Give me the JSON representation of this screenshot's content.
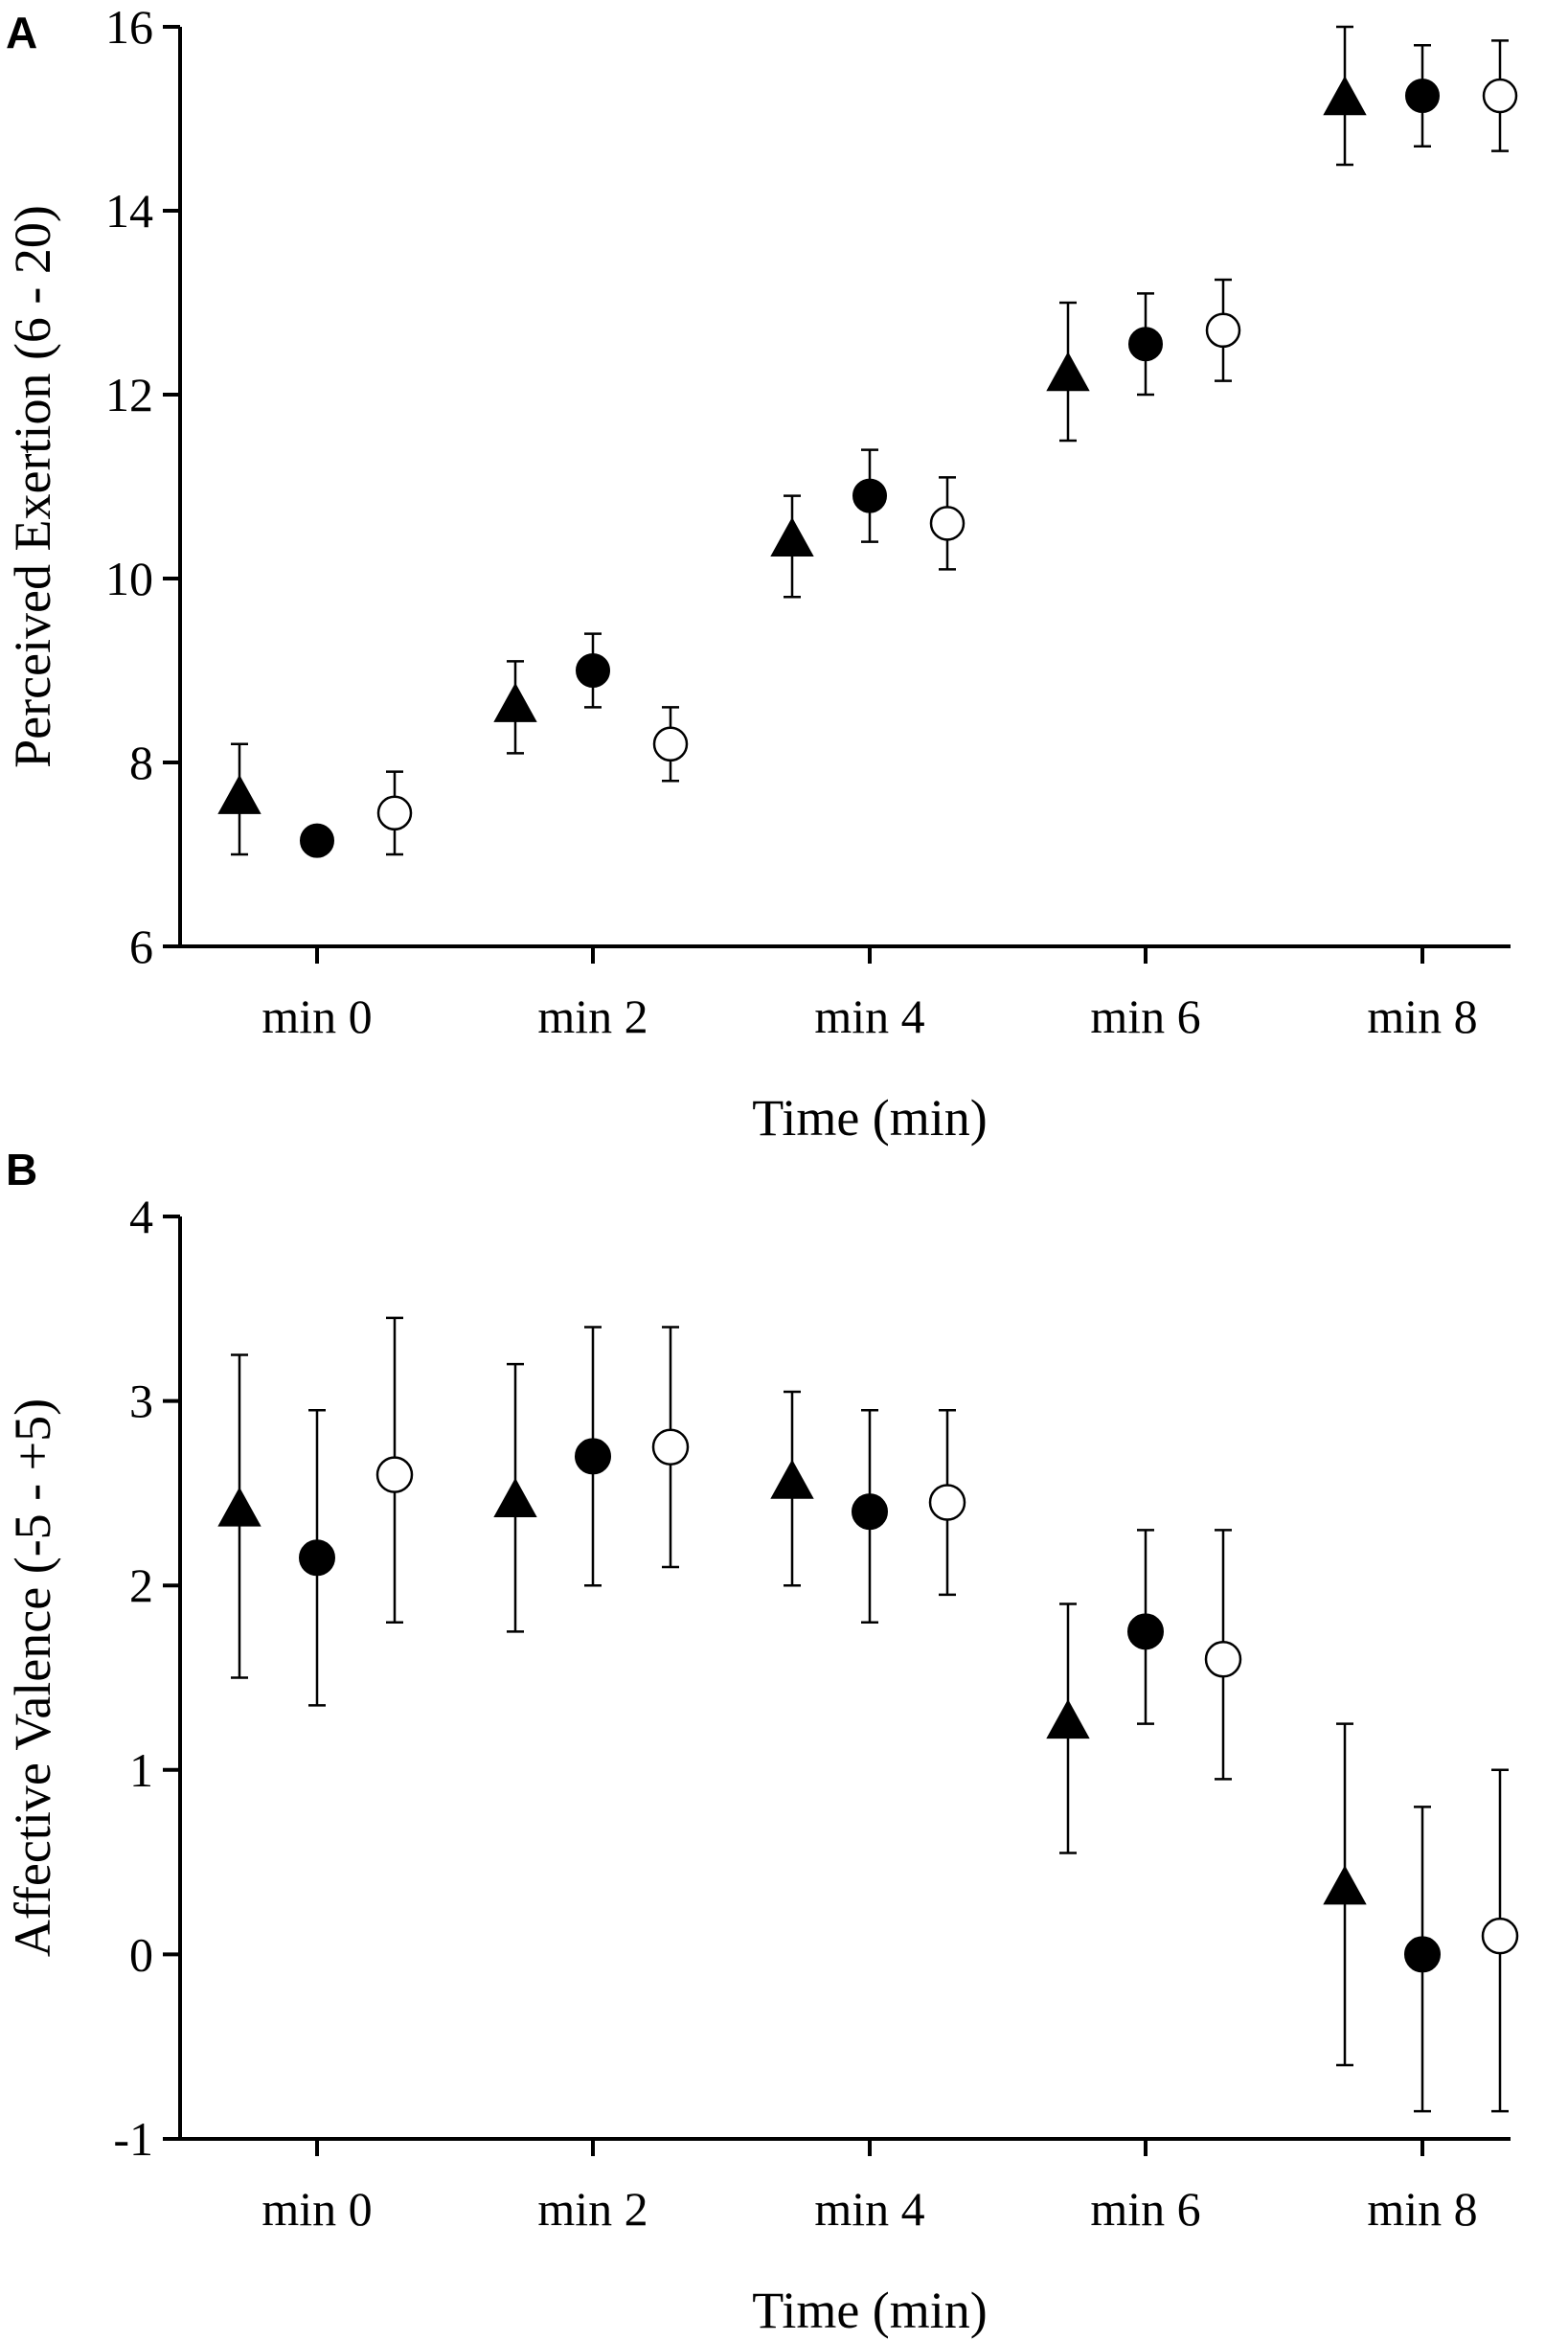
{
  "chart_data": [
    {
      "panel": "A",
      "type": "scatter",
      "xlabel": "Time (min)",
      "ylabel": "Perceived Exertion (6 - 20)",
      "categories": [
        "min 0",
        "min 2",
        "min 4",
        "min 6",
        "min 8"
      ],
      "yticks": [
        "6",
        "8",
        "10",
        "12",
        "14",
        "16"
      ],
      "ylim": [
        6,
        16
      ],
      "series": [
        {
          "name": "triangle-series",
          "marker": "triangle",
          "fill": "#000000",
          "values": [
            7.6,
            8.6,
            10.4,
            12.2,
            15.2
          ],
          "err_low": [
            7.0,
            8.1,
            9.8,
            11.5,
            14.5
          ],
          "err_high": [
            8.2,
            9.1,
            10.9,
            13.0,
            16.0
          ]
        },
        {
          "name": "filled-circle-series",
          "marker": "circle",
          "fill": "#000000",
          "values": [
            7.15,
            9.0,
            10.9,
            12.55,
            15.25
          ],
          "err_low": [
            7.15,
            8.6,
            10.4,
            12.0,
            14.7
          ],
          "err_high": [
            7.15,
            9.4,
            11.4,
            13.1,
            15.8
          ]
        },
        {
          "name": "open-circle-series",
          "marker": "circle",
          "fill": "#ffffff",
          "values": [
            7.45,
            8.2,
            10.6,
            12.7,
            15.25
          ],
          "err_low": [
            7.0,
            7.8,
            10.1,
            12.15,
            14.65
          ],
          "err_high": [
            7.9,
            8.6,
            11.1,
            13.25,
            15.85
          ]
        }
      ]
    },
    {
      "panel": "B",
      "type": "scatter",
      "xlabel": "Time (min)",
      "ylabel": "Affective Valence (-5 - +5)",
      "categories": [
        "min 0",
        "min 2",
        "min 4",
        "min 6",
        "min 8"
      ],
      "yticks": [
        "-1",
        "0",
        "1",
        "2",
        "3",
        "4"
      ],
      "ylim": [
        -1,
        4
      ],
      "series": [
        {
          "name": "triangle-series",
          "marker": "triangle",
          "fill": "#000000",
          "values": [
            2.4,
            2.45,
            2.55,
            1.25,
            0.35
          ],
          "err_low": [
            1.5,
            1.75,
            2.0,
            0.55,
            -0.6
          ],
          "err_high": [
            3.25,
            3.2,
            3.05,
            1.9,
            1.25
          ]
        },
        {
          "name": "filled-circle-series",
          "marker": "circle",
          "fill": "#000000",
          "values": [
            2.15,
            2.7,
            2.4,
            1.75,
            0.0
          ],
          "err_low": [
            1.35,
            2.0,
            1.8,
            1.25,
            -0.85
          ],
          "err_high": [
            2.95,
            3.4,
            2.95,
            2.3,
            0.8
          ]
        },
        {
          "name": "open-circle-series",
          "marker": "circle",
          "fill": "#ffffff",
          "values": [
            2.6,
            2.75,
            2.45,
            1.6,
            0.1
          ],
          "err_low": [
            1.8,
            2.1,
            1.95,
            0.95,
            -0.85
          ],
          "err_high": [
            3.45,
            3.4,
            2.95,
            2.3,
            1.0
          ]
        }
      ]
    }
  ]
}
